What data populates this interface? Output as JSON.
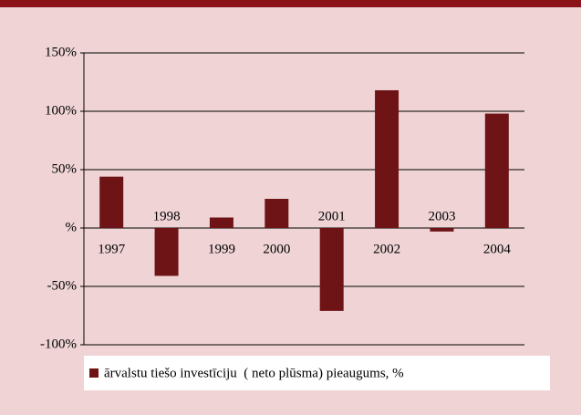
{
  "chart_data": {
    "type": "bar",
    "categories": [
      "1997",
      "1998",
      "1999",
      "2000",
      "2001",
      "2002",
      "2003",
      "2004"
    ],
    "series": [
      {
        "name": "ārvalstu tiešo investīciju  ( neto plūsma) pieaugums, %",
        "color": "#6e1416",
        "values": [
          44,
          -41,
          9,
          25,
          -71,
          118,
          -3,
          98
        ]
      }
    ],
    "ylim": [
      -100,
      150
    ],
    "yticks": [
      {
        "value": -100,
        "label": "-100%"
      },
      {
        "value": -50,
        "label": "-50%"
      },
      {
        "value": 0,
        "label": "%"
      },
      {
        "value": 50,
        "label": "50%"
      },
      {
        "value": 100,
        "label": "100%"
      },
      {
        "value": 150,
        "label": "150%"
      }
    ],
    "grid": true,
    "legend": "bottom"
  }
}
